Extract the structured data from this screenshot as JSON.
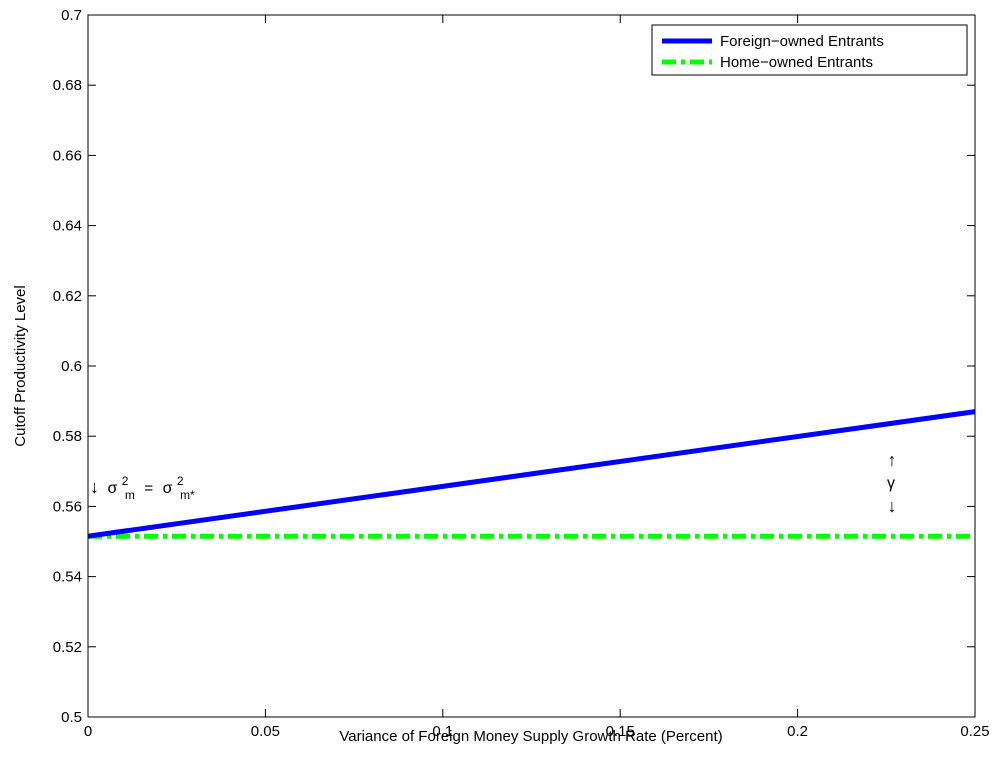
{
  "chart_data": {
    "type": "line",
    "title": "",
    "xlabel": "Variance of Foreign Money Supply Growth Rate (Percent)",
    "ylabel": "Cutoff Productivity Level",
    "xlim": [
      0,
      0.25
    ],
    "ylim": [
      0.5,
      0.7
    ],
    "xticks": [
      0,
      0.05,
      0.1,
      0.15,
      0.2,
      0.25
    ],
    "xtick_labels": [
      "0",
      "0.05",
      "0.1",
      "0.15",
      "0.2",
      "0.25"
    ],
    "yticks": [
      0.5,
      0.52,
      0.54,
      0.56,
      0.58,
      0.6,
      0.62,
      0.64,
      0.66,
      0.68,
      0.7
    ],
    "ytick_labels": [
      "0.5",
      "0.52",
      "0.54",
      "0.56",
      "0.58",
      "0.6",
      "0.62",
      "0.64",
      "0.66",
      "0.68",
      "0.7"
    ],
    "grid": false,
    "legend_position": "top-right",
    "series": [
      {
        "name": "Foreign−owned Entrants",
        "color": "#0000ff",
        "style": "solid",
        "x": [
          0,
          0.25
        ],
        "y": [
          0.5515,
          0.587
        ]
      },
      {
        "name": "Home−owned Entrants",
        "color": "#00ff00",
        "style": "dash-dot",
        "x": [
          0,
          0.25
        ],
        "y": [
          0.5515,
          0.5515
        ]
      }
    ],
    "annotations": {
      "equal_variance": {
        "arrow": "↓",
        "lhs_symbol": "σ",
        "lhs_sup": "2",
        "lhs_sub": "m",
        "equals": "=",
        "rhs_symbol": "σ",
        "rhs_sup": "2",
        "rhs_sub": "m*"
      },
      "gamma": {
        "up_arrow": "↑",
        "symbol": "γ",
        "down_arrow": "↓"
      }
    }
  }
}
